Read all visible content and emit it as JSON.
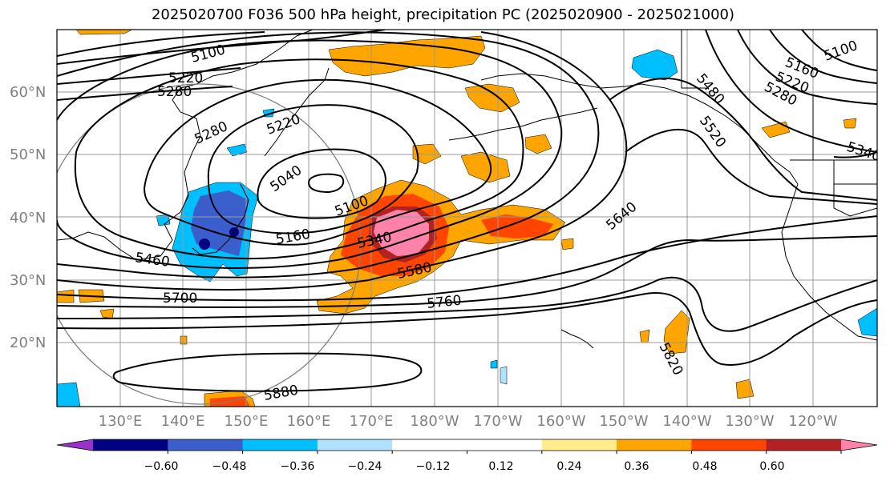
{
  "title": "2025020700 F036 500 hPa height, precipitation PC (2025020900 - 2025021000)",
  "map": {
    "lat_labels": [
      "60°N",
      "50°N",
      "40°N",
      "30°N",
      "20°N"
    ],
    "lon_labels": [
      "130°E",
      "140°E",
      "150°E",
      "160°E",
      "170°E",
      "180°W",
      "170°W",
      "160°W",
      "150°W",
      "140°W",
      "130°W",
      "120°W"
    ],
    "contour_labels": [
      "5100",
      "5220",
      "5280",
      "5280",
      "5220",
      "5040",
      "5100",
      "5160",
      "5340",
      "5460",
      "5580",
      "5700",
      "5760",
      "5640",
      "5880",
      "5820",
      "5160",
      "5220",
      "5280",
      "5480",
      "5520",
      "5340",
      "5100"
    ]
  },
  "colorbar": {
    "colors": [
      "#9932CC",
      "#000080",
      "#3A5FCD",
      "#00BFFF",
      "#B0E2FF",
      "#FFFFFF",
      "#FFFFFF",
      "#FFEC8B",
      "#FFA500",
      "#FF4500",
      "#B22222",
      "#FF82AB"
    ],
    "tick_labels": [
      "−0.60",
      "−0.48",
      "−0.36",
      "−0.24",
      "−0.12",
      "0.12",
      "0.24",
      "0.36",
      "0.48",
      "0.60"
    ]
  }
}
